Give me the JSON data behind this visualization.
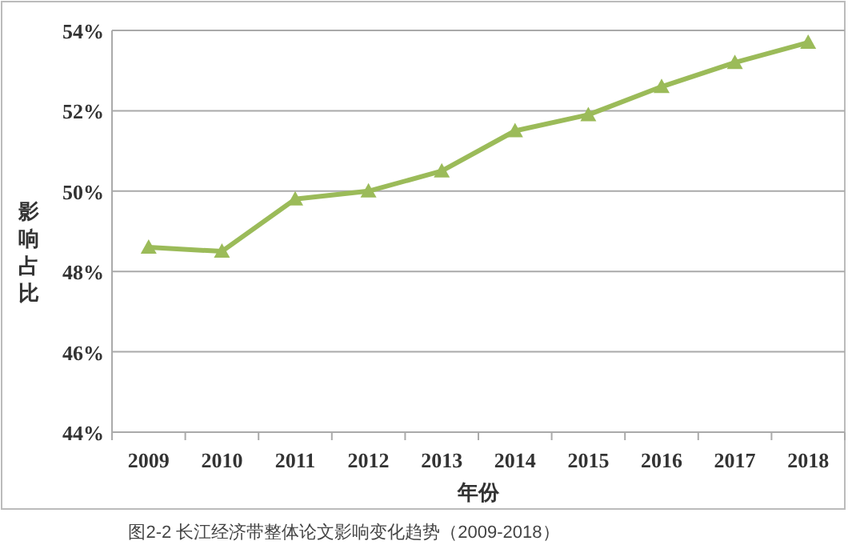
{
  "chart_data": {
    "type": "line",
    "title": "图2-2 长江经济带整体论文影响变化趋势（2009-2018）",
    "xlabel": "年份",
    "ylabel": "影响占比",
    "categories": [
      "2009",
      "2010",
      "2011",
      "2012",
      "2013",
      "2014",
      "2015",
      "2016",
      "2017",
      "2018"
    ],
    "series": [
      {
        "color": "#9bbb59",
        "values": [
          48.6,
          48.5,
          49.8,
          50.0,
          50.5,
          51.5,
          51.9,
          52.6,
          53.2,
          53.7
        ]
      }
    ],
    "ylim": [
      44,
      54
    ],
    "yticks": [
      {
        "value": 44,
        "label": "44%"
      },
      {
        "value": 46,
        "label": "46%"
      },
      {
        "value": 48,
        "label": "48%"
      },
      {
        "value": 50,
        "label": "50%"
      },
      {
        "value": 52,
        "label": "52%"
      },
      {
        "value": 54,
        "label": "54%"
      }
    ],
    "grid": "y",
    "marker": "triangle",
    "line_style": "solid"
  }
}
